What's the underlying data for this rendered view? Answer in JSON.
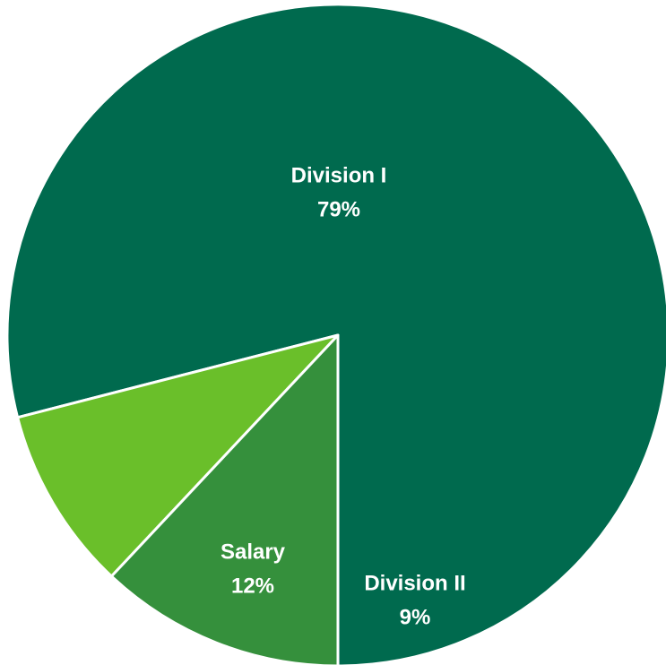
{
  "chart_data": {
    "type": "pie",
    "title": "",
    "start_angle_deg": 180,
    "direction": "counterclockwise",
    "slices": [
      {
        "name": "Division I",
        "value": 79,
        "label_pct": "79%",
        "color": "#006a4e"
      },
      {
        "name": "Division II",
        "value": 9,
        "label_pct": "9%",
        "color": "#6abf2a"
      },
      {
        "name": "Salary",
        "value": 12,
        "label_pct": "12%",
        "color": "#35903c"
      }
    ]
  }
}
